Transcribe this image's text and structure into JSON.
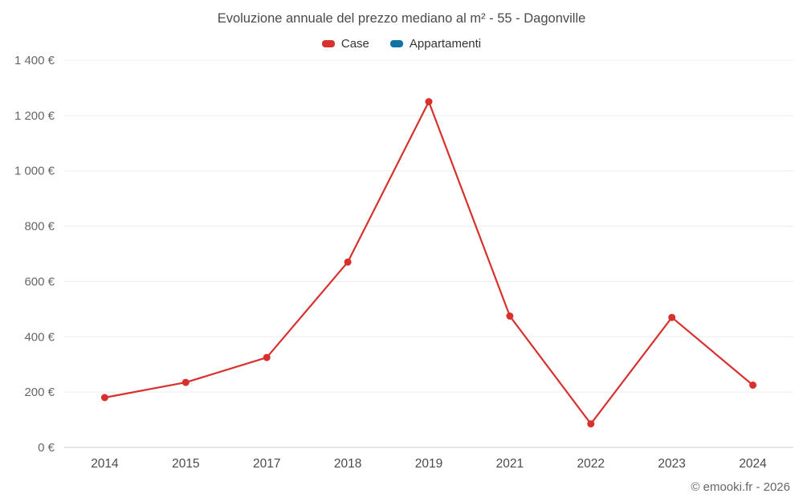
{
  "title": "Evoluzione annuale del prezzo mediano al m² - 55 - Dagonville",
  "legend": [
    {
      "label": "Case",
      "color": "#d7312e"
    },
    {
      "label": "Appartamenti",
      "color": "#1272a5"
    }
  ],
  "footer": "© emooki.fr - 2026",
  "colors": {
    "grid": "#ececec",
    "axis": "#cccccc",
    "tick_text": "#666666",
    "x_text": "#4a4a4a"
  },
  "chart_data": {
    "type": "line",
    "title": "Evoluzione annuale del prezzo mediano al m² - 55 - Dagonville",
    "categories": [
      "2014",
      "2015",
      "2017",
      "2018",
      "2019",
      "2021",
      "2022",
      "2023",
      "2024"
    ],
    "series": [
      {
        "name": "Case",
        "color": "#d7312e",
        "values": [
          180,
          235,
          325,
          670,
          1250,
          475,
          85,
          470,
          225
        ]
      },
      {
        "name": "Appartamenti",
        "color": "#1272a5",
        "values": []
      }
    ],
    "xlabel": "",
    "ylabel": "",
    "ylim": [
      0,
      1400
    ],
    "ytick_step": 200,
    "ytick_labels": [
      "0 €",
      "200 €",
      "400 €",
      "600 €",
      "800 €",
      "1 000 €",
      "1 200 €",
      "1 400 €"
    ],
    "grid": true,
    "legend_position": "top"
  }
}
